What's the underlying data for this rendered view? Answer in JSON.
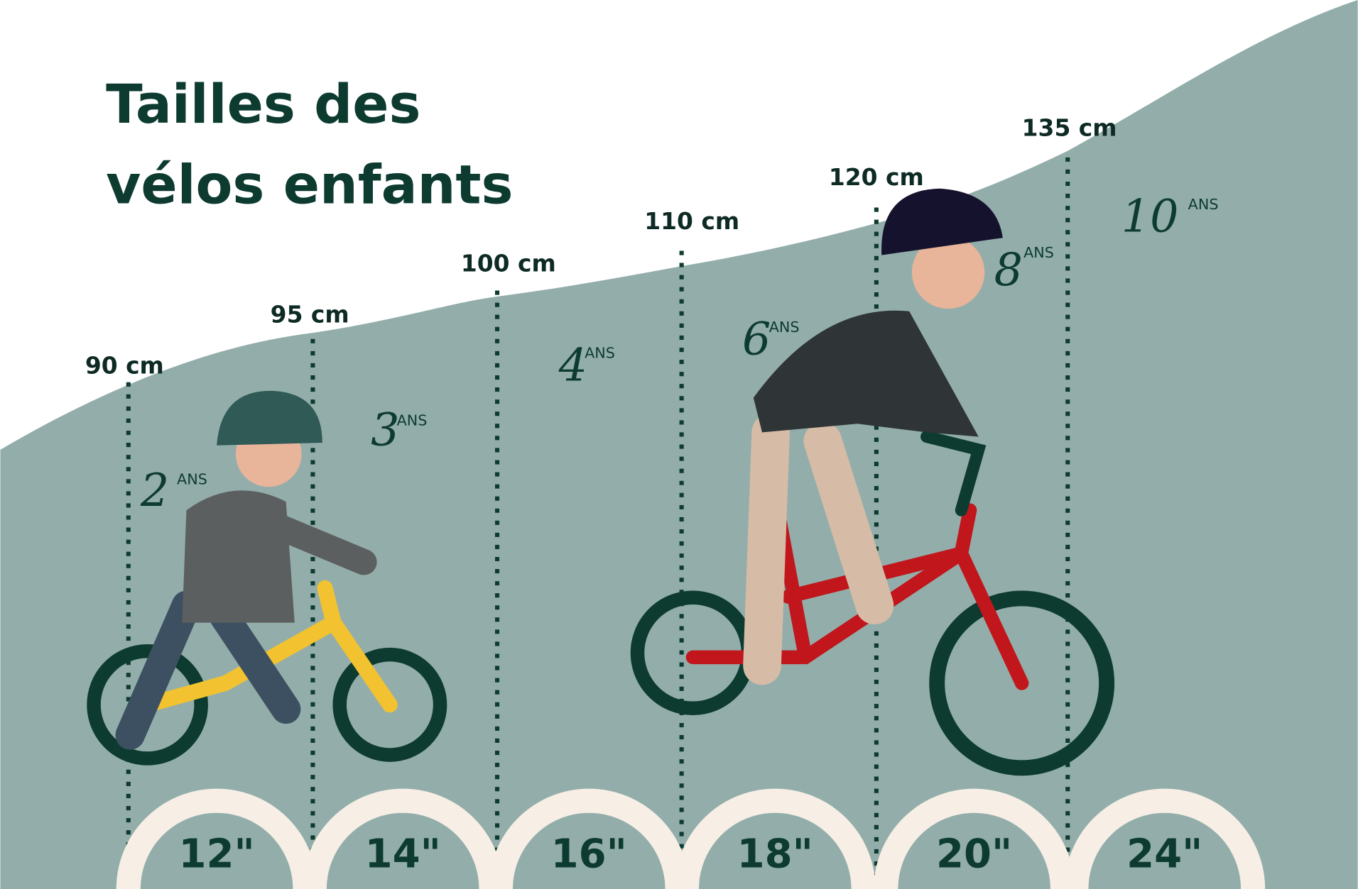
{
  "title": {
    "line1": "Tailles des",
    "line2": "vélos enfants"
  },
  "heights": [
    "90 cm",
    "95 cm",
    "100 cm",
    "110 cm",
    "120 cm",
    "135 cm"
  ],
  "ages": [
    {
      "n": "2",
      "s": "ANS"
    },
    {
      "n": "3",
      "s": "ANS"
    },
    {
      "n": "4",
      "s": "ANS"
    },
    {
      "n": "6",
      "s": "ANS"
    },
    {
      "n": "8",
      "s": "ANS"
    },
    {
      "n": "10",
      "s": "ANS"
    }
  ],
  "wheel_sizes": [
    "12\"",
    "14\"",
    "16\"",
    "18\"",
    "20\"",
    "24\""
  ],
  "colors": {
    "background": "#93aeaa",
    "ink": "#0d3b30",
    "tire": "#f7efe6",
    "balance_bike": "#f2c230",
    "bike": "#c0161c"
  }
}
